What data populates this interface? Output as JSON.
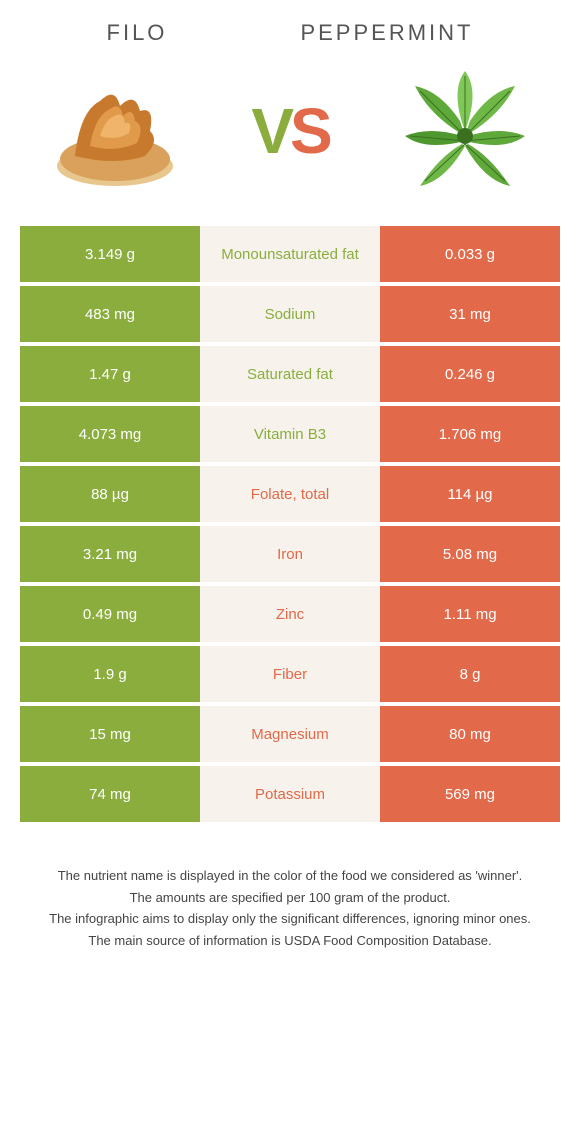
{
  "header": {
    "left_title": "Filo",
    "right_title": "Peppermint",
    "vs_v": "V",
    "vs_s": "S"
  },
  "colors": {
    "left": "#8aad3e",
    "right": "#e2694a",
    "mid_bg": "#f7f3ec",
    "text": "#333333"
  },
  "rows": [
    {
      "left": "3.149 g",
      "label": "Monounsaturated fat",
      "right": "0.033 g",
      "winner": "left"
    },
    {
      "left": "483 mg",
      "label": "Sodium",
      "right": "31 mg",
      "winner": "left"
    },
    {
      "left": "1.47 g",
      "label": "Saturated fat",
      "right": "0.246 g",
      "winner": "left"
    },
    {
      "left": "4.073 mg",
      "label": "Vitamin B3",
      "right": "1.706 mg",
      "winner": "left"
    },
    {
      "left": "88 µg",
      "label": "Folate, total",
      "right": "114 µg",
      "winner": "right"
    },
    {
      "left": "3.21 mg",
      "label": "Iron",
      "right": "5.08 mg",
      "winner": "right"
    },
    {
      "left": "0.49 mg",
      "label": "Zinc",
      "right": "1.11 mg",
      "winner": "right"
    },
    {
      "left": "1.9 g",
      "label": "Fiber",
      "right": "8 g",
      "winner": "right"
    },
    {
      "left": "15 mg",
      "label": "Magnesium",
      "right": "80 mg",
      "winner": "right"
    },
    {
      "left": "74 mg",
      "label": "Potassium",
      "right": "569 mg",
      "winner": "right"
    }
  ],
  "footer": {
    "line1": "The nutrient name is displayed in the color of the food we considered as 'winner'.",
    "line2": "The amounts are specified per 100 gram of the product.",
    "line3": "The infographic aims to display only the significant differences, ignoring minor ones.",
    "line4": "The main source of information is USDA Food Composition Database."
  }
}
